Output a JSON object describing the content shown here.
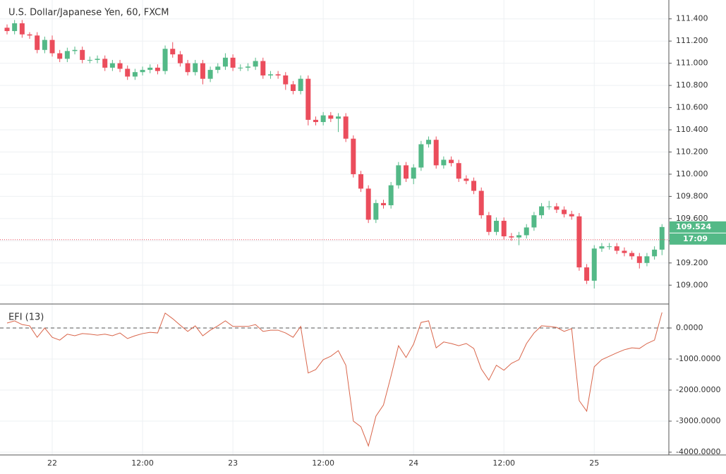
{
  "chart_data": [
    {
      "type": "candlestick",
      "title": "U.S. Dollar/Japanese Yen, 60, FXCM",
      "categories": [
        null,
        null,
        null,
        null,
        null,
        null,
        "22",
        null,
        null,
        null,
        null,
        null,
        null,
        null,
        null,
        null,
        null,
        null,
        "12:00",
        null,
        null,
        null,
        null,
        null,
        null,
        null,
        null,
        null,
        null,
        null,
        "23",
        null,
        null,
        null,
        null,
        null,
        null,
        null,
        null,
        null,
        null,
        null,
        "12:00",
        null,
        null,
        null,
        null,
        null,
        null,
        null,
        null,
        null,
        null,
        null,
        "24",
        null,
        null,
        null,
        null,
        null,
        null,
        null,
        null,
        null,
        null,
        null,
        "12:00",
        null,
        null,
        null,
        null,
        null,
        null,
        null,
        null,
        null,
        null,
        null,
        "25",
        null,
        null,
        null,
        null,
        null,
        null,
        null,
        null,
        null
      ],
      "open": [
        111.32,
        111.29,
        111.36,
        111.26,
        111.25,
        111.12,
        111.21,
        111.09,
        111.04,
        111.11,
        111.12,
        111.03,
        111.03,
        111.04,
        110.96,
        111.0,
        110.95,
        110.88,
        110.92,
        110.94,
        110.96,
        110.93,
        111.13,
        111.08,
        111.0,
        110.92,
        111.0,
        110.86,
        110.94,
        110.97,
        111.05,
        110.96,
        110.96,
        110.97,
        111.02,
        110.89,
        110.9,
        110.89,
        110.81,
        110.75,
        110.86,
        110.49,
        110.47,
        110.53,
        110.5,
        110.52,
        110.32,
        110.0,
        109.87,
        109.59,
        109.74,
        109.72,
        109.9,
        110.08,
        109.96,
        110.06,
        110.27,
        110.31,
        110.08,
        110.13,
        110.1,
        109.96,
        109.94,
        109.85,
        109.63,
        109.48,
        109.58,
        109.44,
        109.43,
        109.45,
        109.52,
        109.63,
        109.71,
        109.71,
        109.68,
        109.64,
        109.62,
        109.16,
        109.04,
        109.33,
        109.35,
        109.35,
        109.31,
        109.29,
        109.26,
        109.2,
        109.26,
        109.32
      ],
      "high": [
        111.35,
        111.39,
        111.39,
        111.28,
        111.28,
        111.24,
        111.25,
        111.12,
        111.14,
        111.15,
        111.15,
        111.06,
        111.07,
        111.07,
        111.03,
        111.03,
        110.98,
        110.95,
        110.97,
        110.99,
        110.99,
        111.16,
        111.19,
        111.11,
        111.03,
        111.03,
        111.03,
        110.97,
        111.0,
        111.09,
        111.08,
        110.99,
        111.0,
        111.05,
        111.05,
        110.93,
        110.93,
        110.92,
        110.84,
        110.89,
        110.89,
        110.52,
        110.56,
        110.56,
        110.55,
        110.55,
        110.35,
        110.03,
        109.9,
        109.77,
        109.77,
        109.93,
        110.11,
        110.11,
        110.09,
        110.3,
        110.34,
        110.34,
        110.16,
        110.16,
        110.13,
        109.99,
        109.97,
        109.88,
        109.66,
        109.61,
        109.61,
        109.47,
        109.48,
        109.55,
        109.66,
        109.74,
        109.76,
        109.74,
        109.71,
        109.67,
        109.65,
        109.19,
        109.36,
        109.38,
        109.38,
        109.38,
        109.34,
        109.31,
        109.29,
        109.29,
        109.35,
        109.55
      ],
      "low": [
        111.26,
        111.26,
        111.23,
        111.22,
        111.09,
        111.09,
        111.06,
        111.01,
        111.01,
        111.08,
        111.0,
        111.0,
        111.0,
        110.93,
        110.93,
        110.92,
        110.85,
        110.85,
        110.89,
        110.91,
        110.9,
        110.9,
        111.05,
        110.97,
        110.89,
        110.89,
        110.81,
        110.83,
        110.91,
        110.94,
        110.93,
        110.93,
        110.93,
        110.94,
        110.86,
        110.86,
        110.86,
        110.76,
        110.72,
        110.72,
        110.44,
        110.44,
        110.44,
        110.47,
        110.38,
        110.29,
        109.97,
        109.84,
        109.56,
        109.56,
        109.69,
        109.69,
        109.87,
        109.93,
        109.91,
        110.03,
        110.24,
        110.05,
        110.05,
        110.07,
        109.93,
        109.91,
        109.82,
        109.6,
        109.45,
        109.45,
        109.41,
        109.4,
        109.36,
        109.42,
        109.49,
        109.6,
        109.68,
        109.65,
        109.61,
        109.59,
        109.13,
        109.01,
        108.97,
        109.3,
        109.32,
        109.28,
        109.26,
        109.23,
        109.15,
        109.17,
        109.23,
        109.27
      ],
      "close": [
        111.29,
        111.36,
        111.26,
        111.25,
        111.12,
        111.21,
        111.09,
        111.04,
        111.11,
        111.12,
        111.03,
        111.03,
        111.04,
        110.96,
        111.0,
        110.95,
        110.88,
        110.92,
        110.94,
        110.96,
        110.93,
        111.13,
        111.08,
        111.0,
        110.92,
        111.0,
        110.86,
        110.94,
        110.97,
        111.05,
        110.96,
        110.96,
        110.97,
        111.02,
        110.89,
        110.9,
        110.89,
        110.81,
        110.75,
        110.86,
        110.49,
        110.47,
        110.53,
        110.5,
        110.52,
        110.32,
        110.0,
        109.87,
        109.59,
        109.74,
        109.72,
        109.9,
        110.08,
        109.96,
        110.06,
        110.27,
        110.31,
        110.08,
        110.13,
        110.1,
        109.96,
        109.94,
        109.85,
        109.63,
        109.48,
        109.58,
        109.44,
        109.43,
        109.45,
        109.52,
        109.63,
        109.71,
        109.71,
        109.68,
        109.64,
        109.62,
        109.16,
        109.04,
        109.33,
        109.35,
        109.35,
        109.31,
        109.29,
        109.26,
        109.2,
        109.26,
        109.32,
        109.524
      ],
      "up_color": "#53b987",
      "down_color": "#eb4d5c",
      "ylim": [
        108.83,
        111.57
      ],
      "yticks": [
        {
          "value": 109,
          "label": "109.000"
        },
        {
          "value": 109.2,
          "label": "109.200"
        },
        {
          "value": 109.4,
          "label": "109.400"
        },
        {
          "value": 109.6,
          "label": "109.600"
        },
        {
          "value": 109.8,
          "label": "109.800"
        },
        {
          "value": 110,
          "label": "110.000"
        },
        {
          "value": 110.2,
          "label": "110.200"
        },
        {
          "value": 110.4,
          "label": "110.400"
        },
        {
          "value": 110.6,
          "label": "110.600"
        },
        {
          "value": 110.8,
          "label": "110.800"
        },
        {
          "value": 111,
          "label": "111.000"
        },
        {
          "value": 111.2,
          "label": "111.200"
        },
        {
          "value": 111.4,
          "label": "111.400"
        }
      ],
      "last_price": 109.524,
      "countdown": "17:09",
      "bid_line": 109.41,
      "bid_color": "#eb4d5c",
      "grid": true
    },
    {
      "type": "line",
      "title": "EFI (13)",
      "color": "#d9654a",
      "values": [
        160,
        230,
        110,
        70,
        -300,
        0,
        -300,
        -390,
        -200,
        -250,
        -180,
        -200,
        -230,
        -200,
        -250,
        -160,
        -340,
        -250,
        -180,
        -140,
        -160,
        480,
        300,
        90,
        -110,
        70,
        -250,
        -70,
        70,
        230,
        50,
        50,
        50,
        110,
        -110,
        -70,
        -70,
        -160,
        -300,
        50,
        -1450,
        -1340,
        -1020,
        -910,
        -730,
        -1200,
        -3000,
        -3180,
        -3800,
        -2840,
        -2480,
        -1550,
        -570,
        -950,
        -520,
        180,
        230,
        -640,
        -450,
        -500,
        -570,
        -500,
        -660,
        -1320,
        -1680,
        -1200,
        -1360,
        -1140,
        -1020,
        -500,
        -160,
        70,
        50,
        20,
        -110,
        -20,
        -2340,
        -2680,
        -1250,
        -1020,
        -910,
        -800,
        -700,
        -640,
        -660,
        -500,
        -390,
        500
      ],
      "ylim": [
        -4090,
        750
      ],
      "yticks": [
        {
          "value": 0,
          "label": "0.0000"
        },
        {
          "value": -1000,
          "label": "-1000.0000"
        },
        {
          "value": -2000,
          "label": "-2000.0000"
        },
        {
          "value": -3000,
          "label": "-3000.0000"
        },
        {
          "value": -4000,
          "label": "-4000.0000"
        }
      ],
      "baseline": 0,
      "grid": true
    }
  ]
}
